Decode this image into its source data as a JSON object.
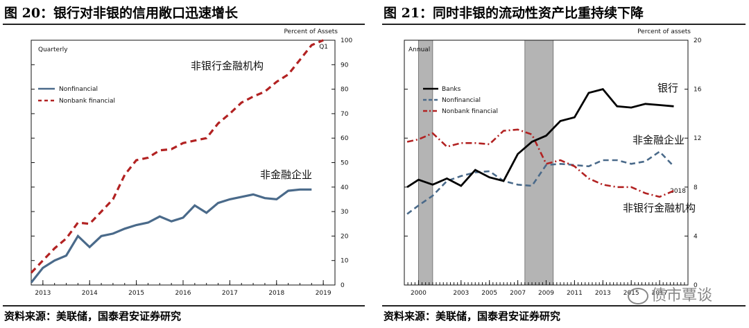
{
  "page": {
    "left_title": "图 20：银行对非银的信用敞口迅速增长",
    "right_title": "图 21：同时非银的流动性资产比重持续下降",
    "left_source": "资料来源：美联储，国泰君安证券研究",
    "right_source": "资料来源：美联储，国泰君安证券研究",
    "watermark": "债市覃谈"
  },
  "chart_data": [
    {
      "type": "line",
      "title": "图 20：银行对非银的信用敞口迅速增长",
      "frequency_label": "Quarterly",
      "ylabel": "Percent of Assets",
      "ylim": [
        0,
        100
      ],
      "yticks": [
        0,
        10,
        20,
        30,
        40,
        50,
        60,
        70,
        80,
        90,
        100
      ],
      "xlim": [
        2012.75,
        2019.25
      ],
      "xticks": [
        "2013",
        "2014",
        "2015",
        "2016",
        "2017",
        "2018",
        "2019"
      ],
      "xtick_values": [
        2013,
        2014,
        2015,
        2016,
        2017,
        2018,
        2019
      ],
      "end_label": "Q1",
      "legend": [
        "Nonfinancial",
        "Nonbank financial"
      ],
      "annotations": [
        "非银行金融机构",
        "非金融企业"
      ],
      "colors": {
        "nonfinancial": "#4a6a8a",
        "nonbank": "#b22222"
      },
      "series": [
        {
          "name": "Nonfinancial",
          "x": [
            2012.75,
            2013.0,
            2013.25,
            2013.5,
            2013.75,
            2014.0,
            2014.25,
            2014.5,
            2014.75,
            2015.0,
            2015.25,
            2015.5,
            2015.75,
            2016.0,
            2016.25,
            2016.5,
            2016.75,
            2017.0,
            2017.25,
            2017.5,
            2017.75,
            2018.0,
            2018.25,
            2018.5,
            2018.75
          ],
          "values": [
            1,
            7,
            10,
            12,
            20,
            15.5,
            20,
            21,
            23,
            24.5,
            25.5,
            28,
            26,
            27.5,
            32.5,
            29.5,
            33.5,
            35,
            36,
            37,
            35.5,
            35,
            38.5,
            39,
            39
          ]
        },
        {
          "name": "Nonbank financial",
          "x": [
            2012.75,
            2013.0,
            2013.25,
            2013.5,
            2013.75,
            2014.0,
            2014.25,
            2014.5,
            2014.75,
            2015.0,
            2015.25,
            2015.5,
            2015.75,
            2016.0,
            2016.25,
            2016.5,
            2016.75,
            2017.0,
            2017.25,
            2017.5,
            2017.75,
            2018.0,
            2018.25,
            2018.5,
            2018.75,
            2019.0
          ],
          "values": [
            5,
            10,
            15,
            19,
            25.5,
            25,
            30,
            35,
            45,
            51,
            52,
            55,
            55.5,
            58,
            59,
            60,
            66,
            70,
            74.5,
            77,
            79,
            83,
            86,
            92,
            98,
            100
          ]
        }
      ]
    },
    {
      "type": "line",
      "title": "图 21：同时非银的流动性资产比重持续下降",
      "frequency_label": "Annual",
      "ylabel": "Percent of assets",
      "ylim": [
        0,
        20
      ],
      "yticks": [
        0,
        4,
        8,
        12,
        16,
        20
      ],
      "xlim": [
        1999,
        2019
      ],
      "xticks": [
        "2000",
        "2003",
        "2005",
        "2007",
        "2009",
        "2011",
        "2013",
        "2015",
        "2017"
      ],
      "xtick_values": [
        2000,
        2003,
        2005,
        2007,
        2009,
        2011,
        2013,
        2015,
        2017
      ],
      "end_label": "2018",
      "recessions": [
        [
          2000,
          2001
        ],
        [
          2007.5,
          2009.5
        ]
      ],
      "legend": [
        "Banks",
        "Nonfinancial",
        "Nonbank financial"
      ],
      "annotations": [
        "银行",
        "非金融企业",
        "非银行金融机构"
      ],
      "colors": {
        "banks": "#000000",
        "nonfinancial": "#4a6a8a",
        "nonbank": "#b22222"
      },
      "series": [
        {
          "name": "Banks",
          "x": [
            1999.2,
            2000,
            2001,
            2002,
            2003,
            2004,
            2005,
            2006,
            2007,
            2008,
            2009,
            2010,
            2011,
            2012,
            2013,
            2014,
            2015,
            2016,
            2017,
            2018
          ],
          "values": [
            8,
            8.6,
            8.2,
            8.7,
            8.1,
            9.4,
            8.8,
            8.5,
            10.7,
            11.7,
            12.2,
            13.4,
            13.7,
            15.7,
            16,
            14.6,
            14.5,
            14.8,
            14.7,
            14.6
          ]
        },
        {
          "name": "Nonfinancial",
          "x": [
            1999.2,
            2000,
            2001,
            2002,
            2003,
            2004,
            2005,
            2006,
            2007,
            2008,
            2009,
            2010,
            2011,
            2012,
            2013,
            2014,
            2015,
            2016,
            2017,
            2018
          ],
          "values": [
            5.8,
            6.5,
            7.3,
            8.5,
            8.9,
            9.2,
            9.3,
            8.5,
            8.2,
            8.1,
            9.8,
            9.9,
            9.8,
            9.7,
            10.2,
            10.2,
            9.9,
            10.1,
            10.9,
            9.7
          ]
        },
        {
          "name": "Nonbank financial",
          "x": [
            1999.2,
            2000,
            2001,
            2002,
            2003,
            2004,
            2005,
            2006,
            2007,
            2008,
            2009,
            2010,
            2011,
            2012,
            2013,
            2014,
            2015,
            2016,
            2017,
            2018
          ],
          "values": [
            11.7,
            11.9,
            12.4,
            11.3,
            11.6,
            11.6,
            11.5,
            12.6,
            12.7,
            12.3,
            9.9,
            10.2,
            9.7,
            8.7,
            8.2,
            8,
            8,
            7.5,
            7.2,
            7.7
          ]
        }
      ]
    }
  ]
}
